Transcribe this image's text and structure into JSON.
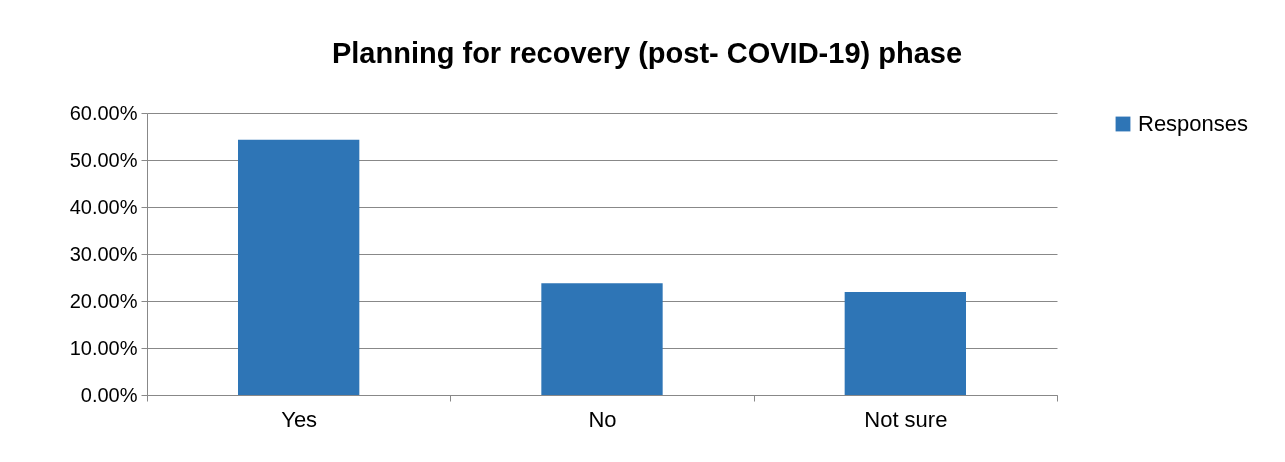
{
  "chart_data": {
    "type": "bar",
    "title": "Planning for recovery (post- COVID-19) phase",
    "categories": [
      "Yes",
      "No",
      "Not sure"
    ],
    "series": [
      {
        "name": "Responses",
        "color": "#2e75b6",
        "values": [
          54.3,
          23.8,
          21.9
        ]
      }
    ],
    "ylim": [
      0,
      60
    ],
    "yticks": [
      {
        "value": 0,
        "label": "0.00%"
      },
      {
        "value": 10,
        "label": "10.00%"
      },
      {
        "value": 20,
        "label": "20.00%"
      },
      {
        "value": 30,
        "label": "30.00%"
      },
      {
        "value": 40,
        "label": "40.00%"
      },
      {
        "value": 50,
        "label": "50.00%"
      },
      {
        "value": 60,
        "label": "60.00%"
      }
    ],
    "grid": "y",
    "legend": "right"
  }
}
